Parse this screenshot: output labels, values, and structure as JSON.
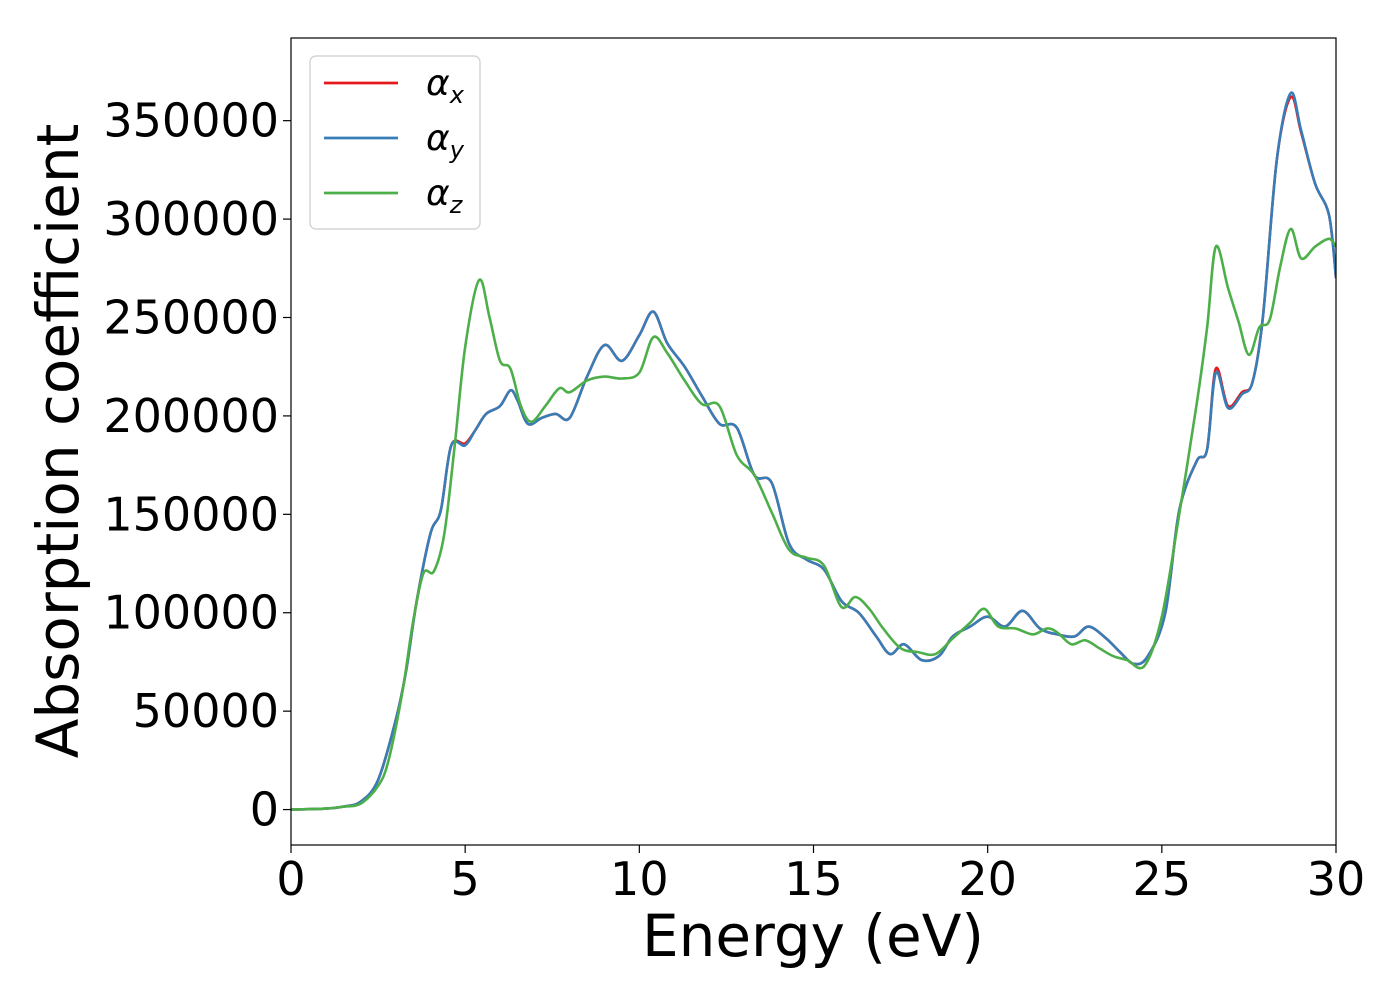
{
  "chart_data": {
    "type": "line",
    "xlabel": "Energy (eV)",
    "ylabel": "Absorption coefficient",
    "xlim": [
      0,
      30
    ],
    "ylim": [
      -18000,
      392000
    ],
    "x_ticks": [
      0,
      5,
      10,
      15,
      20,
      25,
      30
    ],
    "y_ticks": [
      0,
      50000,
      100000,
      150000,
      200000,
      250000,
      300000,
      350000
    ],
    "grid": false,
    "legend_position": "upper-left",
    "series": [
      {
        "name": "α_x",
        "symbol": "α",
        "subscript": "x",
        "color": "#e41a1c",
        "points": [
          [
            0,
            0
          ],
          [
            1,
            500
          ],
          [
            1.5,
            1500
          ],
          [
            2,
            4000
          ],
          [
            2.5,
            15000
          ],
          [
            3,
            45000
          ],
          [
            3.3,
            70000
          ],
          [
            3.6,
            105000
          ],
          [
            4,
            140000
          ],
          [
            4.3,
            152000
          ],
          [
            4.6,
            185000
          ],
          [
            5,
            186000
          ],
          [
            5.3,
            193000
          ],
          [
            5.6,
            201000
          ],
          [
            6,
            205000
          ],
          [
            6.3,
            213000
          ],
          [
            6.5,
            208000
          ],
          [
            6.8,
            196000
          ],
          [
            7.2,
            199000
          ],
          [
            7.6,
            201000
          ],
          [
            8,
            199000
          ],
          [
            8.5,
            220000
          ],
          [
            9,
            236000
          ],
          [
            9.5,
            228000
          ],
          [
            10,
            241000
          ],
          [
            10.4,
            253000
          ],
          [
            10.8,
            237000
          ],
          [
            11.3,
            225000
          ],
          [
            11.8,
            210000
          ],
          [
            12.3,
            196000
          ],
          [
            12.8,
            194000
          ],
          [
            13.3,
            170000
          ],
          [
            13.8,
            166000
          ],
          [
            14.3,
            135000
          ],
          [
            14.8,
            127000
          ],
          [
            15.3,
            122000
          ],
          [
            15.8,
            106000
          ],
          [
            16.3,
            100000
          ],
          [
            16.8,
            88000
          ],
          [
            17.2,
            79000
          ],
          [
            17.6,
            84000
          ],
          [
            18.1,
            76000
          ],
          [
            18.6,
            78000
          ],
          [
            19,
            88000
          ],
          [
            19.5,
            93000
          ],
          [
            20,
            98000
          ],
          [
            20.5,
            93000
          ],
          [
            21,
            101000
          ],
          [
            21.5,
            92000
          ],
          [
            22,
            89000
          ],
          [
            22.5,
            88000
          ],
          [
            22.9,
            93000
          ],
          [
            23.4,
            87000
          ],
          [
            23.8,
            80000
          ],
          [
            24.2,
            74000
          ],
          [
            24.6,
            78000
          ],
          [
            25.1,
            100000
          ],
          [
            25.5,
            152000
          ],
          [
            26,
            177000
          ],
          [
            26.3,
            183000
          ],
          [
            26.55,
            224000
          ],
          [
            26.9,
            205000
          ],
          [
            27.3,
            212000
          ],
          [
            27.6,
            217000
          ],
          [
            27.9,
            250000
          ],
          [
            28.3,
            330000
          ],
          [
            28.7,
            362000
          ],
          [
            29,
            344000
          ],
          [
            29.4,
            318000
          ],
          [
            29.8,
            302000
          ],
          [
            30,
            270000
          ]
        ]
      },
      {
        "name": "α_y",
        "symbol": "α",
        "subscript": "y",
        "color": "#377eb8",
        "points": [
          [
            0,
            0
          ],
          [
            1,
            500
          ],
          [
            1.5,
            1500
          ],
          [
            2,
            4000
          ],
          [
            2.5,
            15000
          ],
          [
            3,
            45000
          ],
          [
            3.3,
            70000
          ],
          [
            3.6,
            105000
          ],
          [
            4,
            140000
          ],
          [
            4.3,
            152000
          ],
          [
            4.6,
            185000
          ],
          [
            5,
            185000
          ],
          [
            5.3,
            193000
          ],
          [
            5.6,
            201000
          ],
          [
            6,
            205000
          ],
          [
            6.3,
            213000
          ],
          [
            6.5,
            208000
          ],
          [
            6.8,
            196000
          ],
          [
            7.2,
            199000
          ],
          [
            7.6,
            201000
          ],
          [
            8,
            199000
          ],
          [
            8.5,
            220000
          ],
          [
            9,
            236000
          ],
          [
            9.5,
            228000
          ],
          [
            10,
            241000
          ],
          [
            10.4,
            253000
          ],
          [
            10.8,
            237000
          ],
          [
            11.3,
            225000
          ],
          [
            11.8,
            210000
          ],
          [
            12.3,
            196000
          ],
          [
            12.8,
            194000
          ],
          [
            13.3,
            170000
          ],
          [
            13.8,
            166000
          ],
          [
            14.3,
            135000
          ],
          [
            14.8,
            127000
          ],
          [
            15.3,
            122000
          ],
          [
            15.8,
            106000
          ],
          [
            16.3,
            100000
          ],
          [
            16.8,
            88000
          ],
          [
            17.2,
            79000
          ],
          [
            17.6,
            84000
          ],
          [
            18.1,
            76000
          ],
          [
            18.6,
            78000
          ],
          [
            19,
            88000
          ],
          [
            19.5,
            93000
          ],
          [
            20,
            98000
          ],
          [
            20.5,
            93000
          ],
          [
            21,
            101000
          ],
          [
            21.5,
            92000
          ],
          [
            22,
            89000
          ],
          [
            22.5,
            88000
          ],
          [
            22.9,
            93000
          ],
          [
            23.4,
            87000
          ],
          [
            23.8,
            80000
          ],
          [
            24.2,
            74000
          ],
          [
            24.6,
            78000
          ],
          [
            25.1,
            100000
          ],
          [
            25.5,
            152000
          ],
          [
            26,
            177000
          ],
          [
            26.3,
            183000
          ],
          [
            26.55,
            222000
          ],
          [
            26.9,
            204000
          ],
          [
            27.3,
            211000
          ],
          [
            27.6,
            217000
          ],
          [
            27.9,
            250000
          ],
          [
            28.3,
            330000
          ],
          [
            28.7,
            364000
          ],
          [
            29,
            345000
          ],
          [
            29.4,
            318000
          ],
          [
            29.8,
            302000
          ],
          [
            30,
            270000
          ]
        ]
      },
      {
        "name": "α_z",
        "symbol": "α",
        "subscript": "z",
        "color": "#4daf4a",
        "points": [
          [
            0,
            0
          ],
          [
            1,
            500
          ],
          [
            1.5,
            1500
          ],
          [
            2,
            3000
          ],
          [
            2.5,
            12000
          ],
          [
            2.8,
            25000
          ],
          [
            3.2,
            60000
          ],
          [
            3.5,
            95000
          ],
          [
            3.8,
            120000
          ],
          [
            4.1,
            121000
          ],
          [
            4.4,
            140000
          ],
          [
            4.7,
            185000
          ],
          [
            5,
            235000
          ],
          [
            5.4,
            269000
          ],
          [
            5.7,
            250000
          ],
          [
            6,
            228000
          ],
          [
            6.3,
            224000
          ],
          [
            6.6,
            205000
          ],
          [
            6.9,
            197000
          ],
          [
            7.3,
            205000
          ],
          [
            7.7,
            214000
          ],
          [
            8,
            212000
          ],
          [
            8.5,
            218000
          ],
          [
            9,
            220000
          ],
          [
            9.5,
            219000
          ],
          [
            10,
            222000
          ],
          [
            10.4,
            240000
          ],
          [
            10.8,
            232000
          ],
          [
            11.3,
            218000
          ],
          [
            11.8,
            206000
          ],
          [
            12.3,
            205000
          ],
          [
            12.8,
            180000
          ],
          [
            13.3,
            170000
          ],
          [
            13.8,
            151000
          ],
          [
            14.3,
            132000
          ],
          [
            14.8,
            128000
          ],
          [
            15.3,
            124000
          ],
          [
            15.8,
            103000
          ],
          [
            16.2,
            108000
          ],
          [
            16.6,
            102000
          ],
          [
            17,
            92000
          ],
          [
            17.5,
            82000
          ],
          [
            18,
            80000
          ],
          [
            18.5,
            79000
          ],
          [
            19,
            87000
          ],
          [
            19.5,
            95000
          ],
          [
            19.9,
            102000
          ],
          [
            20.3,
            93000
          ],
          [
            20.8,
            92000
          ],
          [
            21.3,
            89000
          ],
          [
            21.7,
            92000
          ],
          [
            22,
            90000
          ],
          [
            22.4,
            84000
          ],
          [
            22.8,
            86000
          ],
          [
            23.2,
            82000
          ],
          [
            23.6,
            78000
          ],
          [
            24,
            76000
          ],
          [
            24.5,
            73000
          ],
          [
            25,
            98000
          ],
          [
            25.5,
            150000
          ],
          [
            26,
            206000
          ],
          [
            26.3,
            245000
          ],
          [
            26.55,
            286000
          ],
          [
            26.9,
            265000
          ],
          [
            27.2,
            248000
          ],
          [
            27.5,
            231000
          ],
          [
            27.8,
            245000
          ],
          [
            28.1,
            249000
          ],
          [
            28.4,
            276000
          ],
          [
            28.7,
            295000
          ],
          [
            29,
            280000
          ],
          [
            29.4,
            286000
          ],
          [
            29.8,
            290000
          ],
          [
            30,
            286000
          ]
        ]
      }
    ]
  }
}
